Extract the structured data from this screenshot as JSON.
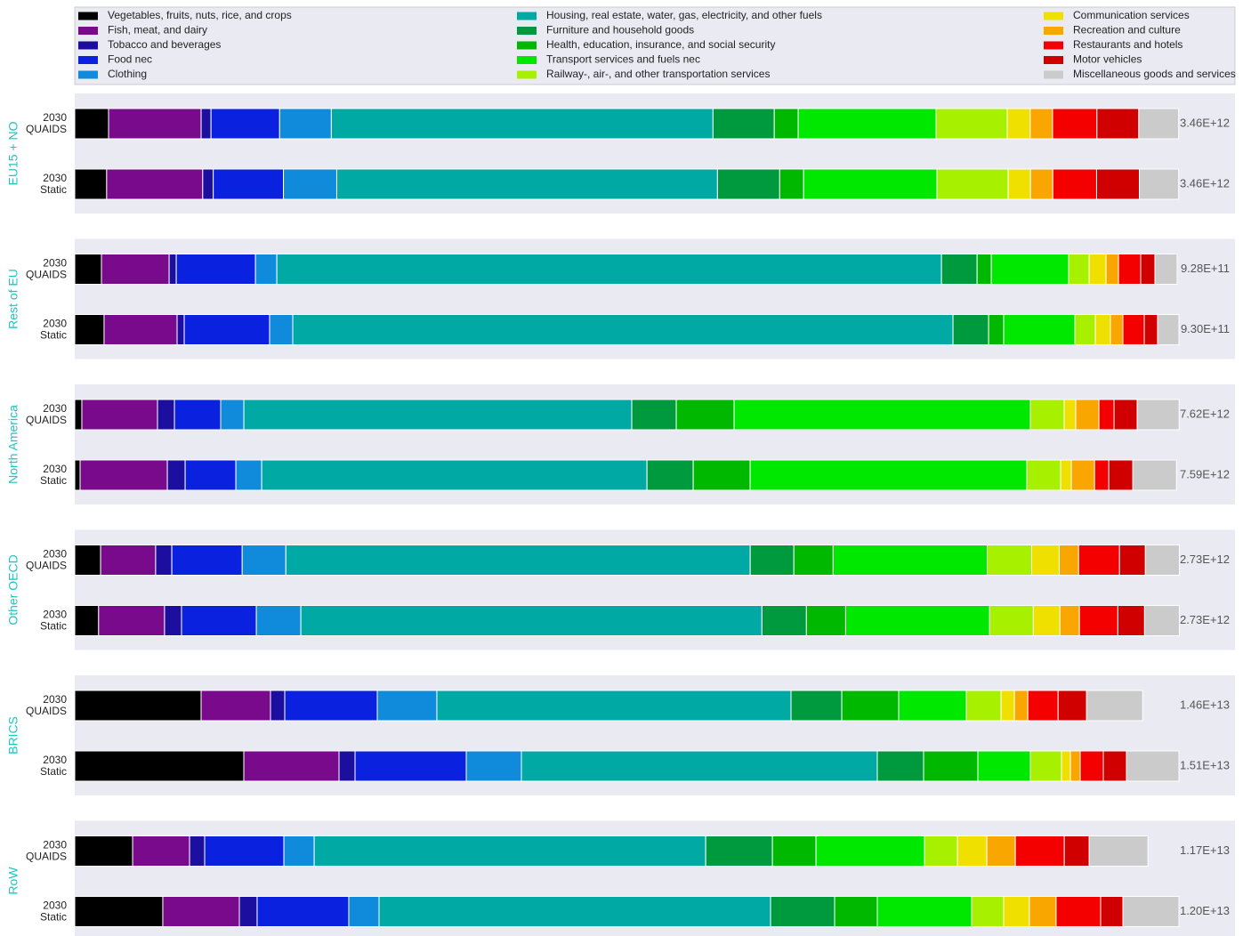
{
  "chart_data": {
    "type": "bar",
    "orientation": "horizontal",
    "stacked": true,
    "series": [
      {
        "name": "Vegetables, fruits, nuts, rice, and crops",
        "color": "#000000"
      },
      {
        "name": "Fish, meat, and dairy",
        "color": "#7a0a8c"
      },
      {
        "name": "Tobacco and beverages",
        "color": "#1c0e9e"
      },
      {
        "name": "Food nec",
        "color": "#0a22e0"
      },
      {
        "name": "Clothing",
        "color": "#108bdb"
      },
      {
        "name": "Housing, real estate, water, gas, electricity, and other fuels",
        "color": "#00a9a4"
      },
      {
        "name": "Furniture and household goods",
        "color": "#009a3e"
      },
      {
        "name": "Health, education, insurance, and social security",
        "color": "#00b800"
      },
      {
        "name": "Transport services and fuels nec",
        "color": "#00e800"
      },
      {
        "name": "Railway-, air-, and other transportation services",
        "color": "#a6f000"
      },
      {
        "name": "Communication services",
        "color": "#f0e000"
      },
      {
        "name": "Recreation and culture",
        "color": "#f9a600"
      },
      {
        "name": "Restaurants and hotels",
        "color": "#f50000"
      },
      {
        "name": "Motor vehicles",
        "color": "#d00000"
      },
      {
        "name": "Miscellaneous goods and services",
        "color": "#cbcbcb"
      }
    ],
    "panels": [
      {
        "group": "EU15 + NO",
        "xlim": [
          0,
          3460000000000.0
        ],
        "bars": [
          {
            "year": "2030",
            "scenario": "QUAIDS",
            "total_label": "3.46E+12",
            "values": [
              106000000000.0,
              290000000000.0,
              31000000000.0,
              215000000000.0,
              162000000000.0,
              1196000000000.0,
              192000000000.0,
              75000000000.0,
              432000000000.0,
              223000000000.0,
              72000000000.0,
              70000000000.0,
              139000000000.0,
              131000000000.0,
              125000000000.0
            ]
          },
          {
            "year": "2030",
            "scenario": "Static",
            "total_label": "3.46E+12",
            "values": [
              100000000000.0,
              301000000000.0,
              33000000000.0,
              220000000000.0,
              167000000000.0,
              1193000000000.0,
              195000000000.0,
              75000000000.0,
              418000000000.0,
              223000000000.0,
              70000000000.0,
              70000000000.0,
              137000000000.0,
              134000000000.0,
              123000000000.0
            ]
          }
        ]
      },
      {
        "group": "Rest of EU",
        "xlim": [
          0,
          930000000000.0
        ],
        "bars": [
          {
            "year": "2030",
            "scenario": "QUAIDS",
            "total_label": "9.28E+11",
            "values": [
              22500000000.0,
              57000000000.0,
              6000000000.0,
              66700000000.0,
              18000000000.0,
              559800000000.0,
              30000000000.0,
              12000000000.0,
              65200000000.0,
              17200000000.0,
              14200000000.0,
              10500000000.0,
              18700000000.0,
              12000000000.0,
              18700000000.0
            ]
          },
          {
            "year": "2030",
            "scenario": "Static",
            "total_label": "9.30E+11",
            "values": [
              24700000000.0,
              61500000000.0,
              6000000000.0,
              71900000000.0,
              19500000000.0,
              556100000000.0,
              30000000000.0,
              12700000000.0,
              60000000000.0,
              17200000000.0,
              12700000000.0,
              10500000000.0,
              18000000000.0,
              11200000000.0,
              18000000000.0
            ]
          }
        ]
      },
      {
        "group": "North America",
        "xlim": [
          0,
          7620000000000.0
        ],
        "bars": [
          {
            "year": "2030",
            "scenario": "QUAIDS",
            "total_label": "7.62E+12",
            "values": [
              49000000000.0,
              522000000000.0,
              117000000000.0,
              319000000000.0,
              160000000000.0,
              2677000000000.0,
              307000000000.0,
              399000000000.0,
              2045000000000.0,
              233000000000.0,
              80000000000.0,
              160000000000.0,
              104000000000.0,
              160000000000.0,
              289000000000.0
            ]
          },
          {
            "year": "2030",
            "scenario": "Static",
            "total_label": "7.59E+12",
            "values": [
              37000000000.0,
              602000000000.0,
              123000000000.0,
              350000000000.0,
              178000000000.0,
              2659000000000.0,
              319000000000.0,
              393000000000.0,
              1910000000000.0,
              233000000000.0,
              74000000000.0,
              160000000000.0,
              98000000000.0,
              166000000000.0,
              301000000000.0
            ]
          }
        ]
      },
      {
        "group": "Other OECD",
        "xlim": [
          0,
          2730000000000.0
        ],
        "bars": [
          {
            "year": "2030",
            "scenario": "QUAIDS",
            "total_label": "2.73E+12",
            "values": [
              64000000000.0,
              136000000000.0,
              40000000000.0,
              174000000000.0,
              108000000000.0,
              1148000000000.0,
              108000000000.0,
              97000000000.0,
              381000000000.0,
              110000000000.0,
              68000000000.0,
              48000000000.0,
              101000000000.0,
              64000000000.0,
              84000000000.0
            ]
          },
          {
            "year": "2030",
            "scenario": "Static",
            "total_label": "2.73E+12",
            "values": [
              59000000000.0,
              163000000000.0,
              42000000000.0,
              185000000000.0,
              110000000000.0,
              1140000000000.0,
              110000000000.0,
              97000000000.0,
              356000000000.0,
              108000000000.0,
              66000000000.0,
              48000000000.0,
              95000000000.0,
              66000000000.0,
              86000000000.0
            ]
          }
        ]
      },
      {
        "group": "BRICS",
        "xlim": [
          0,
          15100000000000.0
        ],
        "bars": [
          {
            "year": "2030",
            "scenario": "QUAIDS",
            "total_label": "1.46E+13",
            "values": [
              1728000000000.0,
              949000000000.0,
              195000000000.0,
              1265000000000.0,
              815000000000.0,
              4843000000000.0,
              694000000000.0,
              779000000000.0,
              925000000000.0,
              475000000000.0,
              183000000000.0,
              183000000000.0,
              414000000000.0,
              389000000000.0,
              767000000000.0
            ]
          },
          {
            "year": "2030",
            "scenario": "Static",
            "total_label": "1.51E+13",
            "values": [
              2312000000000.0,
              1302000000000.0,
              219000000000.0,
              1521000000000.0,
              754000000000.0,
              4867000000000.0,
              633000000000.0,
              742000000000.0,
              718000000000.0,
              426000000000.0,
              122000000000.0,
              134000000000.0,
              316000000000.0,
              316000000000.0,
              718000000000.0
            ]
          }
        ]
      },
      {
        "group": "RoW",
        "xlim": [
          0,
          12000000000000.0
        ],
        "bars": [
          {
            "year": "2030",
            "scenario": "QUAIDS",
            "total_label": "1.17E+13",
            "values": [
              629000000000.0,
              619000000000.0,
              164000000000.0,
              861000000000.0,
              329000000000.0,
              4255000000000.0,
              725000000000.0,
              474000000000.0,
              1180000000000.0,
              358000000000.0,
              319000000000.0,
              309000000000.0,
              532000000000.0,
              271000000000.0,
              638000000000.0
            ]
          },
          {
            "year": "2030",
            "scenario": "Static",
            "total_label": "1.20E+13",
            "values": [
              957000000000.0,
              832000000000.0,
              193000000000.0,
              996000000000.0,
              329000000000.0,
              4255000000000.0,
              696000000000.0,
              464000000000.0,
              1025000000000.0,
              348000000000.0,
              280000000000.0,
              290000000000.0,
              484000000000.0,
              242000000000.0,
              609000000000.0
            ]
          }
        ]
      }
    ]
  }
}
